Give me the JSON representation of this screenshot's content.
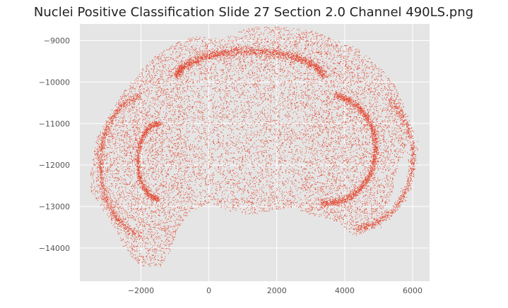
{
  "chart_data": {
    "type": "scatter",
    "title": "Nuclei Positive Classification Slide  27 Section 2.0 Channel 490LS.png",
    "xlabel": "",
    "ylabel": "",
    "xlim": [
      -3800,
      6500
    ],
    "ylim": [
      -14800,
      -8600
    ],
    "grid": true,
    "background_color": "#e5e5e5",
    "grid_color": "#ffffff",
    "marker_color": "#e24a33",
    "x_ticks": [
      -2000,
      0,
      2000,
      4000,
      6000
    ],
    "x_tick_labels": [
      "−2000",
      "0",
      "2000",
      "4000",
      "6000"
    ],
    "y_ticks": [
      -9000,
      -10000,
      -11000,
      -12000,
      -13000,
      -14000
    ],
    "y_tick_labels": [
      "−9000",
      "−10000",
      "−11000",
      "−12000",
      "−13000",
      "−14000"
    ],
    "point_density_description": "dense tissue section cloud",
    "series": [
      {
        "points_extent": {
          "x": [
            -3500,
            5900
          ],
          "y": [
            -14500,
            -8650
          ]
        }
      }
    ]
  }
}
